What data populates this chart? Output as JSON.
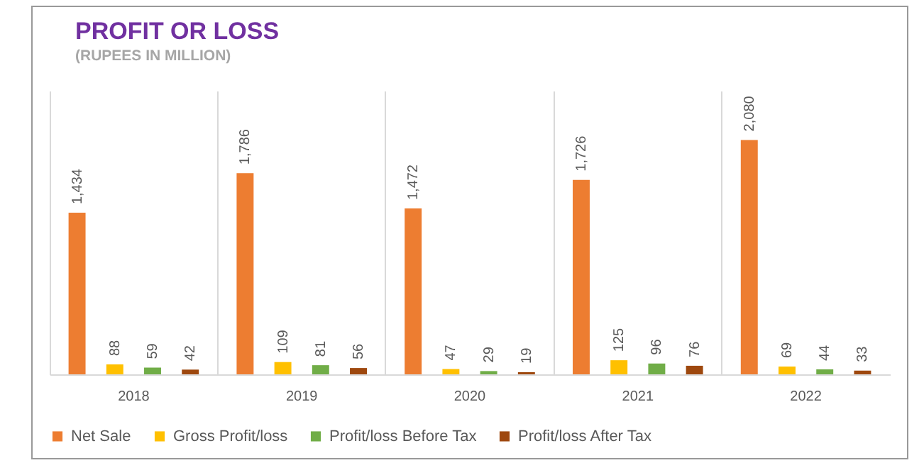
{
  "chart_data": {
    "type": "bar",
    "title": "PROFIT OR LOSS",
    "subtitle": "(RUPEES IN MILLION)",
    "categories": [
      "2018",
      "2019",
      "2020",
      "2021",
      "2022"
    ],
    "series": [
      {
        "name": "Net Sale",
        "color": "#ed7d31",
        "values": [
          1434,
          1786,
          1472,
          1726,
          2080
        ],
        "value_labels": [
          "1,434",
          "1,786",
          "1,472",
          "1,726",
          "2,080"
        ]
      },
      {
        "name": "Gross Profit/loss",
        "color": "#ffc000",
        "values": [
          88,
          109,
          47,
          125,
          69
        ],
        "value_labels": [
          "88",
          "109",
          "47",
          "125",
          "69"
        ]
      },
      {
        "name": "Profit/loss Before Tax",
        "color": "#70ad47",
        "values": [
          59,
          81,
          29,
          96,
          44
        ],
        "value_labels": [
          "59",
          "81",
          "29",
          "96",
          "44"
        ]
      },
      {
        "name": "Profit/loss After Tax",
        "color": "#9e480e",
        "values": [
          42,
          56,
          19,
          76,
          33
        ],
        "value_labels": [
          "42",
          "56",
          "19",
          "76",
          "33"
        ]
      }
    ],
    "grid": "x",
    "legend": "bottom"
  }
}
